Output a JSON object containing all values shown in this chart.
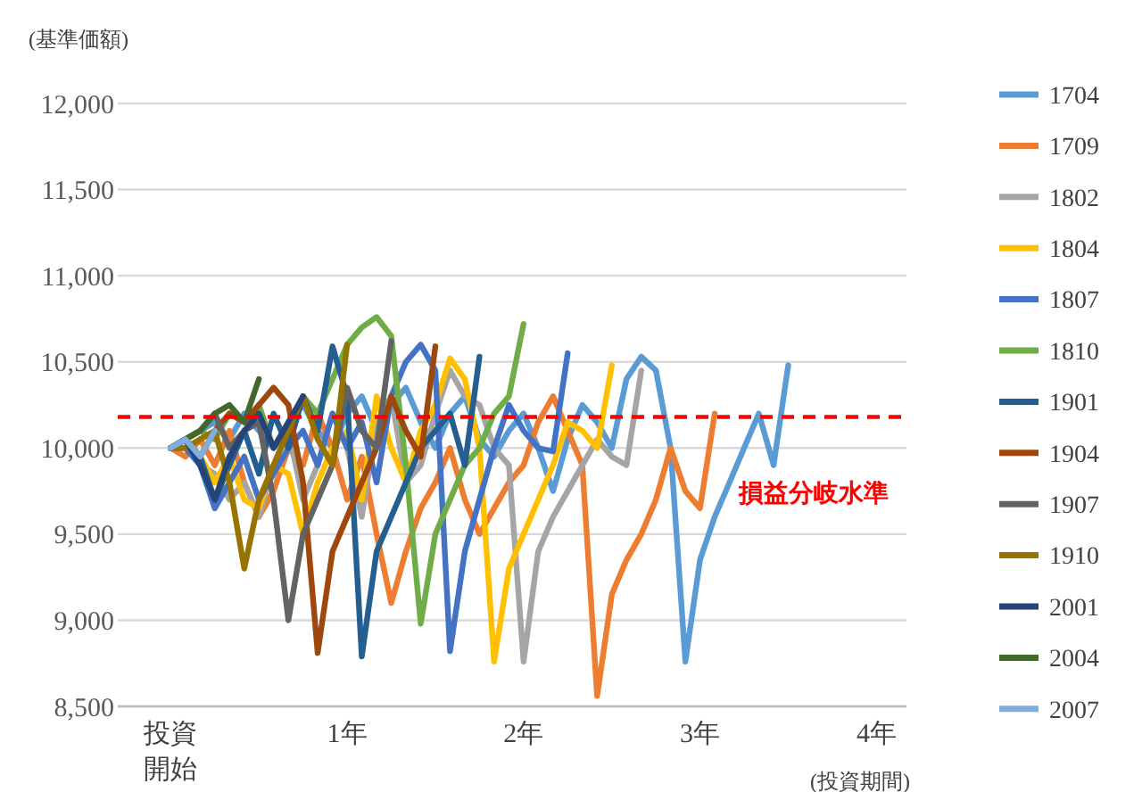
{
  "chart_data": {
    "type": "line",
    "ylabel": "(基準価額)",
    "xlabel": "(投資期間)",
    "x": [
      0,
      0.083,
      0.167,
      0.25,
      0.333,
      0.417,
      0.5,
      0.583,
      0.667,
      0.75,
      0.833,
      0.917,
      1,
      1.083,
      1.167,
      1.25,
      1.333,
      1.417,
      1.5,
      1.583,
      1.667,
      1.75,
      1.833,
      1.917,
      2,
      2.083,
      2.167,
      2.25,
      2.333,
      2.417,
      2.5,
      2.583,
      2.667,
      2.75,
      2.833,
      2.917,
      3,
      3.083,
      3.167,
      3.25,
      3.333,
      3.417,
      3.5
    ],
    "xlim": [
      -0.3,
      4.17
    ],
    "xticks": [
      {
        "value": 0,
        "label": "投資開始"
      },
      {
        "value": 1,
        "label": "1年"
      },
      {
        "value": 2,
        "label": "2年"
      },
      {
        "value": 3,
        "label": "3年"
      },
      {
        "value": 4,
        "label": "4年"
      }
    ],
    "ylim": [
      8500,
      12000
    ],
    "yticks": [
      {
        "value": 8500,
        "label": "8,500"
      },
      {
        "value": 9000,
        "label": "9,000"
      },
      {
        "value": 9500,
        "label": "9,500"
      },
      {
        "value": 10000,
        "label": "10,000"
      },
      {
        "value": 10500,
        "label": "10,500"
      },
      {
        "value": 11000,
        "label": "11,000"
      },
      {
        "value": 11500,
        "label": "11,500"
      },
      {
        "value": 12000,
        "label": "12,000"
      }
    ],
    "grid": "y",
    "legend": "right",
    "marker": "none",
    "line_style": "solid",
    "ref_lines": [
      {
        "axis": "y",
        "value": 10180,
        "label": "損益分岐水準",
        "color": "#ff0000",
        "line_style": "dashed"
      }
    ],
    "series": [
      {
        "name": "1704",
        "color": "#5b9bd5",
        "values": [
          10000,
          10050,
          10100,
          10150,
          10050,
          10200,
          10100,
          10000,
          10150,
          10250,
          10100,
          10000,
          10200,
          10300,
          10100,
          10250,
          10350,
          10150,
          10000,
          10200,
          10300,
          10050,
          9950,
          10100,
          10200,
          10000,
          9750,
          10050,
          10250,
          10150,
          10000,
          10400,
          10530,
          10450,
          10000,
          8760,
          9350,
          9600,
          9800,
          10000,
          10200,
          9900,
          10480
        ]
      },
      {
        "name": "1709",
        "color": "#ed7d31",
        "values": [
          10000,
          9950,
          10050,
          9900,
          10100,
          9800,
          9600,
          9750,
          10000,
          9900,
          10200,
          10000,
          9700,
          9950,
          9500,
          9100,
          9400,
          9650,
          9800,
          10000,
          9700,
          9500,
          9650,
          9800,
          9900,
          10150,
          10300,
          10100,
          9900,
          8560,
          9150,
          9350,
          9500,
          9700,
          10000,
          9750,
          9650,
          10200,
          null,
          null,
          null,
          null,
          null
        ]
      },
      {
        "name": "1802",
        "color": "#a5a5a5",
        "values": [
          10000,
          10050,
          9900,
          9850,
          9700,
          9800,
          9600,
          9900,
          10100,
          9700,
          9900,
          10200,
          10000,
          9600,
          10150,
          10300,
          9800,
          9900,
          10200,
          10450,
          10300,
          10250,
          10000,
          9900,
          8760,
          9400,
          9600,
          9750,
          9900,
          10050,
          9950,
          9900,
          10450,
          null,
          null,
          null,
          null,
          null,
          null,
          null,
          null,
          null,
          null
        ]
      },
      {
        "name": "1804",
        "color": "#ffc000",
        "values": [
          10000,
          10050,
          9950,
          9800,
          9950,
          9700,
          9650,
          9900,
          9850,
          9500,
          9800,
          10000,
          10100,
          9700,
          10300,
          10000,
          9800,
          10100,
          10250,
          10520,
          10400,
          10000,
          8760,
          9300,
          9500,
          9700,
          9900,
          10150,
          10100,
          10000,
          10480,
          null,
          null,
          null,
          null,
          null,
          null,
          null,
          null,
          null,
          null,
          null,
          null
        ]
      },
      {
        "name": "1807",
        "color": "#4472c4",
        "values": [
          10000,
          10000,
          9900,
          9650,
          9800,
          9950,
          9700,
          9850,
          10000,
          10100,
          9900,
          10200,
          10000,
          10150,
          9800,
          10300,
          10500,
          10600,
          10450,
          8820,
          9400,
          9700,
          10000,
          10250,
          10100,
          10000,
          9980,
          10550,
          null,
          null,
          null,
          null,
          null,
          null,
          null,
          null,
          null,
          null,
          null,
          null,
          null,
          null,
          null
        ]
      },
      {
        "name": "1810",
        "color": "#70ad47",
        "values": [
          10000,
          10050,
          10100,
          10050,
          10200,
          10150,
          10250,
          10000,
          10100,
          10300,
          10200,
          10400,
          10600,
          10700,
          10760,
          10650,
          9900,
          8980,
          9500,
          9700,
          9900,
          10000,
          10200,
          10300,
          10720,
          null,
          null,
          null,
          null,
          null,
          null,
          null,
          null,
          null,
          null,
          null,
          null,
          null,
          null,
          null,
          null,
          null,
          null
        ]
      },
      {
        "name": "1901",
        "color": "#255e91",
        "values": [
          10000,
          10050,
          9950,
          9700,
          9900,
          10100,
          9850,
          10200,
          10000,
          10300,
          10100,
          10590,
          10300,
          8790,
          9400,
          9600,
          9800,
          10000,
          10100,
          10200,
          9900,
          10530,
          null,
          null,
          null,
          null,
          null,
          null,
          null,
          null,
          null,
          null,
          null,
          null,
          null,
          null,
          null,
          null,
          null,
          null,
          null,
          null,
          null
        ]
      },
      {
        "name": "1904",
        "color": "#9e480e",
        "values": [
          10000,
          10050,
          9950,
          10100,
          10200,
          10150,
          10250,
          10350,
          10250,
          9800,
          8810,
          9400,
          9600,
          9800,
          10000,
          10300,
          10100,
          9950,
          10590,
          null,
          null,
          null,
          null,
          null,
          null,
          null,
          null,
          null,
          null,
          null,
          null,
          null,
          null,
          null,
          null,
          null,
          null,
          null,
          null,
          null,
          null,
          null,
          null
        ]
      },
      {
        "name": "1907",
        "color": "#636363",
        "values": [
          10000,
          10050,
          10100,
          10200,
          10000,
          10100,
          10150,
          9700,
          9000,
          9500,
          9700,
          9900,
          10350,
          10100,
          10000,
          10620,
          null,
          null,
          null,
          null,
          null,
          null,
          null,
          null,
          null,
          null,
          null,
          null,
          null,
          null,
          null,
          null,
          null,
          null,
          null,
          null,
          null,
          null,
          null,
          null,
          null,
          null,
          null
        ]
      },
      {
        "name": "1910",
        "color": "#997300",
        "values": [
          10000,
          10000,
          10050,
          10100,
          9800,
          9300,
          9700,
          9900,
          10100,
          10300,
          10050,
          9900,
          10600,
          null,
          null,
          null,
          null,
          null,
          null,
          null,
          null,
          null,
          null,
          null,
          null,
          null,
          null,
          null,
          null,
          null,
          null,
          null,
          null,
          null,
          null,
          null,
          null,
          null,
          null,
          null,
          null,
          null,
          null
        ]
      },
      {
        "name": "2001",
        "color": "#264478",
        "values": [
          10000,
          10050,
          9900,
          9700,
          9950,
          10100,
          10200,
          10000,
          10150,
          10300,
          null,
          null,
          null,
          null,
          null,
          null,
          null,
          null,
          null,
          null,
          null,
          null,
          null,
          null,
          null,
          null,
          null,
          null,
          null,
          null,
          null,
          null,
          null,
          null,
          null,
          null,
          null,
          null,
          null,
          null,
          null,
          null,
          null
        ]
      },
      {
        "name": "2004",
        "color": "#43682b",
        "values": [
          10000,
          10050,
          10100,
          10200,
          10250,
          10150,
          10400,
          null,
          null,
          null,
          null,
          null,
          null,
          null,
          null,
          null,
          null,
          null,
          null,
          null,
          null,
          null,
          null,
          null,
          null,
          null,
          null,
          null,
          null,
          null,
          null,
          null,
          null,
          null,
          null,
          null,
          null,
          null,
          null,
          null,
          null,
          null,
          null
        ]
      },
      {
        "name": "2007",
        "color": "#7cafdd",
        "values": [
          10000,
          10050,
          9950,
          10100,
          null,
          null,
          null,
          null,
          null,
          null,
          null,
          null,
          null,
          null,
          null,
          null,
          null,
          null,
          null,
          null,
          null,
          null,
          null,
          null,
          null,
          null,
          null,
          null,
          null,
          null,
          null,
          null,
          null,
          null,
          null,
          null,
          null,
          null,
          null,
          null,
          null,
          null,
          null
        ]
      }
    ]
  }
}
